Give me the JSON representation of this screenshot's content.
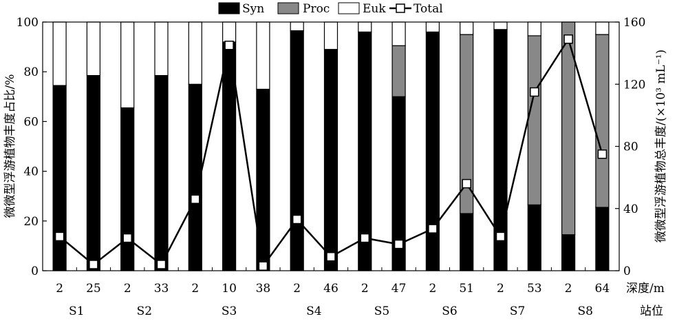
{
  "chart_data": {
    "type": "bar",
    "stacked": true,
    "percent_stack": true,
    "categories": [
      "2",
      "25",
      "2",
      "33",
      "2",
      "10",
      "38",
      "2",
      "46",
      "2",
      "47",
      "2",
      "51",
      "2",
      "53",
      "2",
      "64"
    ],
    "stations": [
      {
        "label": "S1",
        "span": [
          0,
          1
        ]
      },
      {
        "label": "S2",
        "span": [
          2,
          3
        ]
      },
      {
        "label": "S3",
        "span": [
          4,
          6
        ]
      },
      {
        "label": "S4",
        "span": [
          7,
          8
        ]
      },
      {
        "label": "S5",
        "span": [
          9,
          10
        ]
      },
      {
        "label": "S6",
        "span": [
          11,
          12
        ]
      },
      {
        "label": "S7",
        "span": [
          13,
          14
        ]
      },
      {
        "label": "S8",
        "span": [
          15,
          16
        ]
      }
    ],
    "series": [
      {
        "name": "Syn",
        "color": "#000000",
        "values": [
          74.5,
          78.5,
          65.5,
          78.5,
          75,
          92,
          73,
          96.5,
          89,
          96,
          70,
          96,
          23,
          97,
          26.5,
          14.5,
          25.5
        ]
      },
      {
        "name": "Proc",
        "color": "#888888",
        "values": [
          0,
          0,
          0,
          0,
          0,
          0,
          0,
          0,
          0,
          0,
          20.5,
          0,
          72,
          0,
          68,
          85.5,
          69.5
        ]
      },
      {
        "name": "Euk",
        "color": "#ffffff",
        "values": [
          25.5,
          21.5,
          34.5,
          21.5,
          25,
          8,
          27,
          3.5,
          11,
          4,
          9.5,
          4,
          5,
          3,
          5.5,
          0,
          5
        ]
      }
    ],
    "line": {
      "name": "Total",
      "axis": "right",
      "values": [
        22,
        4,
        21,
        4,
        46,
        145,
        3,
        33,
        9,
        21,
        17,
        27,
        56,
        22,
        115,
        149,
        75
      ]
    },
    "ylabel": "微微型浮游植物丰度占比/%",
    "ylim": [
      0,
      100
    ],
    "yticks": [
      0,
      20,
      40,
      60,
      80,
      100
    ],
    "y2label": "微微型浮游植物总丰度/(×10³ mL⁻¹)",
    "y2lim": [
      0,
      160
    ],
    "y2ticks": [
      0,
      40,
      80,
      120,
      160
    ],
    "xlabel_depth": "深度/m",
    "xlabel_station": "站位",
    "legend_position": "top-center",
    "grid": false
  }
}
